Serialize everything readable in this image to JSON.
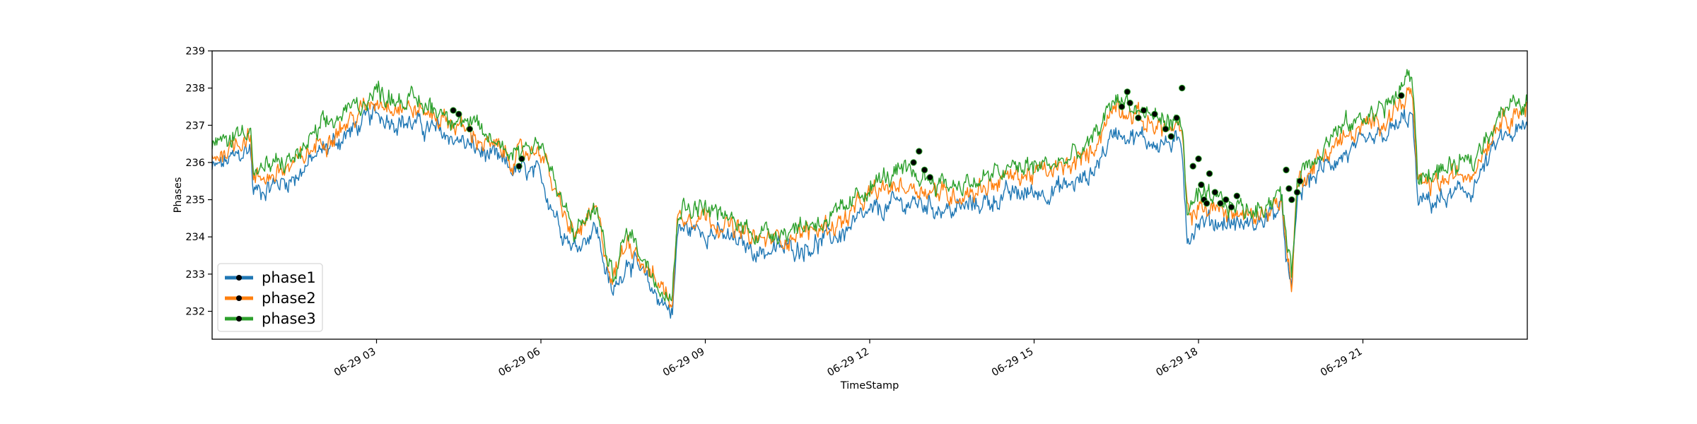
{
  "chart_data": {
    "type": "line",
    "title": "",
    "xlabel": "TimeStamp",
    "ylabel": "Phases",
    "grid": false,
    "legend_position": "lower-left",
    "x_range": [
      "06-29 00:00",
      "06-29 24:00"
    ],
    "ylim": [
      231.25,
      239
    ],
    "y_ticks": [
      232,
      233,
      234,
      235,
      236,
      237,
      238,
      239
    ],
    "x_ticks": [
      {
        "hour": 3,
        "label": "06-29 03"
      },
      {
        "hour": 6,
        "label": "06-29 06"
      },
      {
        "hour": 9,
        "label": "06-29 09"
      },
      {
        "hour": 12,
        "label": "06-29 12"
      },
      {
        "hour": 15,
        "label": "06-29 15"
      },
      {
        "hour": 18,
        "label": "06-29 18"
      },
      {
        "hour": 21,
        "label": "06-29 21"
      }
    ],
    "series": [
      {
        "name": "phase1",
        "color": "#1f77b4",
        "points": [
          [
            0,
            235.8
          ],
          [
            0.5,
            236.2
          ],
          [
            0.7,
            236.4
          ],
          [
            0.75,
            235.2
          ],
          [
            1.5,
            235.6
          ],
          [
            2,
            236.3
          ],
          [
            2.5,
            236.8
          ],
          [
            3,
            237.3
          ],
          [
            3.5,
            237.1
          ],
          [
            4,
            236.9
          ],
          [
            4.5,
            236.6
          ],
          [
            5,
            236.2
          ],
          [
            5.5,
            235.8
          ],
          [
            6,
            235.6
          ],
          [
            6.3,
            234.5
          ],
          [
            6.6,
            233.7
          ],
          [
            7,
            234.3
          ],
          [
            7.3,
            232.4
          ],
          [
            7.6,
            233.5
          ],
          [
            8,
            232.6
          ],
          [
            8.4,
            232.0
          ],
          [
            8.5,
            234.2
          ],
          [
            9,
            234.2
          ],
          [
            9.5,
            233.9
          ],
          [
            10,
            233.6
          ],
          [
            10.5,
            233.7
          ],
          [
            11,
            233.8
          ],
          [
            11.5,
            234.1
          ],
          [
            12,
            234.6
          ],
          [
            12.5,
            234.9
          ],
          [
            13,
            234.9
          ],
          [
            13.5,
            234.7
          ],
          [
            14,
            234.9
          ],
          [
            14.5,
            235.1
          ],
          [
            15,
            235.2
          ],
          [
            15.5,
            235.3
          ],
          [
            16,
            235.6
          ],
          [
            16.5,
            236.9
          ],
          [
            17,
            236.6
          ],
          [
            17.5,
            236.5
          ],
          [
            17.7,
            236.4
          ],
          [
            17.8,
            234.0
          ],
          [
            18,
            234.4
          ],
          [
            18.5,
            234.4
          ],
          [
            19,
            234.3
          ],
          [
            19.5,
            234.8
          ],
          [
            19.7,
            232.4
          ],
          [
            19.8,
            235.0
          ],
          [
            20,
            235.5
          ],
          [
            20.5,
            236.1
          ],
          [
            21,
            236.4
          ],
          [
            21.5,
            236.8
          ],
          [
            21.9,
            237.3
          ],
          [
            22,
            234.9
          ],
          [
            22.5,
            235.0
          ],
          [
            23,
            235.3
          ],
          [
            23.5,
            236.6
          ],
          [
            24,
            236.9
          ]
        ]
      },
      {
        "name": "phase2",
        "color": "#ff7f0e",
        "points": [
          [
            0,
            236.1
          ],
          [
            0.5,
            236.6
          ],
          [
            0.7,
            236.8
          ],
          [
            0.75,
            235.5
          ],
          [
            1.5,
            235.9
          ],
          [
            2,
            236.6
          ],
          [
            2.5,
            237.1
          ],
          [
            3,
            237.7
          ],
          [
            3.5,
            237.5
          ],
          [
            4,
            237.3
          ],
          [
            4.5,
            237.0
          ],
          [
            5,
            236.5
          ],
          [
            5.5,
            236.1
          ],
          [
            6,
            236.4
          ],
          [
            6.3,
            235.0
          ],
          [
            6.6,
            234.0
          ],
          [
            7,
            234.7
          ],
          [
            7.3,
            232.8
          ],
          [
            7.6,
            234.0
          ],
          [
            8,
            233.0
          ],
          [
            8.4,
            232.3
          ],
          [
            8.5,
            234.6
          ],
          [
            9,
            234.6
          ],
          [
            9.5,
            234.2
          ],
          [
            10,
            233.9
          ],
          [
            10.5,
            234.0
          ],
          [
            11,
            234.2
          ],
          [
            11.5,
            234.4
          ],
          [
            12,
            235.1
          ],
          [
            12.5,
            235.4
          ],
          [
            13,
            235.3
          ],
          [
            13.5,
            235.1
          ],
          [
            14,
            235.3
          ],
          [
            14.5,
            235.6
          ],
          [
            15,
            235.7
          ],
          [
            15.5,
            235.8
          ],
          [
            16,
            236.2
          ],
          [
            16.5,
            237.6
          ],
          [
            17,
            237.1
          ],
          [
            17.5,
            236.9
          ],
          [
            17.7,
            236.8
          ],
          [
            17.8,
            234.5
          ],
          [
            18,
            234.8
          ],
          [
            18.5,
            234.7
          ],
          [
            19,
            234.5
          ],
          [
            19.5,
            235.0
          ],
          [
            19.7,
            232.7
          ],
          [
            19.8,
            235.4
          ],
          [
            20,
            235.8
          ],
          [
            20.5,
            236.5
          ],
          [
            21,
            236.9
          ],
          [
            21.5,
            237.3
          ],
          [
            21.9,
            237.9
          ],
          [
            22,
            235.3
          ],
          [
            22.5,
            235.5
          ],
          [
            23,
            235.8
          ],
          [
            23.5,
            237.2
          ],
          [
            24,
            237.5
          ]
        ]
      },
      {
        "name": "phase3",
        "color": "#2ca02c",
        "points": [
          [
            0,
            236.4
          ],
          [
            0.5,
            236.8
          ],
          [
            0.7,
            237.1
          ],
          [
            0.75,
            235.7
          ],
          [
            1.5,
            236.1
          ],
          [
            2,
            236.9
          ],
          [
            2.5,
            237.4
          ],
          [
            3,
            237.9
          ],
          [
            3.5,
            237.7
          ],
          [
            4,
            237.5
          ],
          [
            4.5,
            237.2
          ],
          [
            5,
            236.7
          ],
          [
            5.5,
            236.3
          ],
          [
            6,
            236.6
          ],
          [
            6.3,
            235.2
          ],
          [
            6.6,
            234.1
          ],
          [
            7,
            234.8
          ],
          [
            7.3,
            232.9
          ],
          [
            7.6,
            234.2
          ],
          [
            8,
            233.1
          ],
          [
            8.4,
            232.4
          ],
          [
            8.5,
            234.8
          ],
          [
            9,
            234.8
          ],
          [
            9.5,
            234.4
          ],
          [
            10,
            234.1
          ],
          [
            10.5,
            234.2
          ],
          [
            11,
            234.4
          ],
          [
            11.5,
            234.6
          ],
          [
            12,
            235.4
          ],
          [
            12.5,
            235.7
          ],
          [
            13,
            235.6
          ],
          [
            13.5,
            235.4
          ],
          [
            14,
            235.5
          ],
          [
            14.5,
            235.8
          ],
          [
            15,
            235.9
          ],
          [
            15.5,
            236.0
          ],
          [
            16,
            236.4
          ],
          [
            16.5,
            237.8
          ],
          [
            17,
            237.3
          ],
          [
            17.5,
            237.1
          ],
          [
            17.7,
            237.0
          ],
          [
            17.8,
            234.7
          ],
          [
            18,
            235.0
          ],
          [
            18.5,
            234.9
          ],
          [
            19,
            234.7
          ],
          [
            19.5,
            235.2
          ],
          [
            19.7,
            232.9
          ],
          [
            19.8,
            235.6
          ],
          [
            20,
            236.0
          ],
          [
            20.5,
            236.8
          ],
          [
            21,
            237.2
          ],
          [
            21.5,
            237.6
          ],
          [
            21.9,
            238.4
          ],
          [
            22,
            235.6
          ],
          [
            22.5,
            235.8
          ],
          [
            23,
            236.0
          ],
          [
            23.5,
            237.4
          ],
          [
            24,
            237.6
          ]
        ]
      }
    ],
    "anomalies": {
      "color": "#000000",
      "points": [
        [
          4.4,
          237.4
        ],
        [
          4.5,
          237.3
        ],
        [
          4.7,
          236.9
        ],
        [
          5.6,
          235.9
        ],
        [
          5.65,
          236.1
        ],
        [
          12.8,
          236.0
        ],
        [
          12.9,
          236.3
        ],
        [
          13.0,
          235.8
        ],
        [
          13.1,
          235.6
        ],
        [
          16.6,
          237.5
        ],
        [
          16.7,
          237.9
        ],
        [
          16.75,
          237.6
        ],
        [
          16.9,
          237.2
        ],
        [
          17.0,
          237.4
        ],
        [
          17.2,
          237.3
        ],
        [
          17.4,
          236.9
        ],
        [
          17.5,
          236.7
        ],
        [
          17.6,
          237.2
        ],
        [
          17.7,
          238.0
        ],
        [
          17.9,
          235.9
        ],
        [
          18.0,
          236.1
        ],
        [
          18.05,
          235.4
        ],
        [
          18.1,
          235.0
        ],
        [
          18.15,
          234.9
        ],
        [
          18.2,
          235.7
        ],
        [
          18.3,
          235.2
        ],
        [
          18.4,
          234.9
        ],
        [
          18.5,
          235.0
        ],
        [
          18.6,
          234.8
        ],
        [
          18.7,
          235.1
        ],
        [
          19.6,
          235.8
        ],
        [
          19.65,
          235.3
        ],
        [
          19.7,
          235.0
        ],
        [
          19.8,
          235.2
        ],
        [
          19.85,
          235.5
        ],
        [
          21.7,
          237.8
        ]
      ]
    }
  }
}
